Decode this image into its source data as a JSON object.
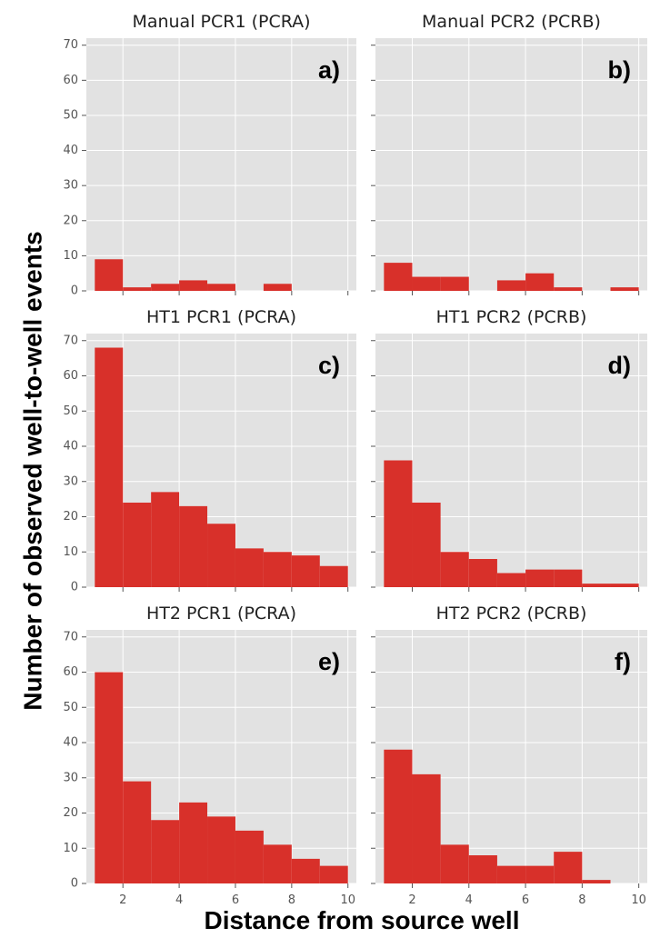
{
  "figure": {
    "ylabel": "Number of observed well-to-well events",
    "xlabel": "Distance from source well"
  },
  "style": {
    "bar_color": "#d8302a",
    "panel_bg": "#e2e2e2",
    "grid_color": "#ffffff"
  },
  "chart_data": [
    {
      "type": "bar",
      "title": "Manual PCR1 (PCRA)",
      "panel_label": "a)",
      "bin_edges": [
        1,
        2,
        3,
        4,
        5,
        6,
        7,
        8,
        9,
        10
      ],
      "values": [
        9,
        1,
        2,
        3,
        2,
        0,
        2,
        0,
        0
      ],
      "xlim": [
        0.7,
        10.3
      ],
      "ylim": [
        0,
        72
      ],
      "xticks": [
        2,
        4,
        6,
        8,
        10
      ],
      "yticks": [
        0,
        10,
        20,
        30,
        40,
        50,
        60,
        70
      ],
      "grid": true
    },
    {
      "type": "bar",
      "title": "Manual PCR2 (PCRB)",
      "panel_label": "b)",
      "bin_edges": [
        1,
        2,
        3,
        4,
        5,
        6,
        7,
        8,
        9,
        10
      ],
      "values": [
        8,
        4,
        4,
        0,
        3,
        5,
        1,
        0,
        1
      ],
      "xlim": [
        0.7,
        10.3
      ],
      "ylim": [
        0,
        72
      ],
      "xticks": [
        2,
        4,
        6,
        8,
        10
      ],
      "yticks": [
        0,
        10,
        20,
        30,
        40,
        50,
        60,
        70
      ],
      "grid": true
    },
    {
      "type": "bar",
      "title": "HT1 PCR1 (PCRA)",
      "panel_label": "c)",
      "bin_edges": [
        1,
        2,
        3,
        4,
        5,
        6,
        7,
        8,
        9,
        10
      ],
      "values": [
        68,
        24,
        27,
        23,
        18,
        11,
        10,
        9,
        6
      ],
      "xlim": [
        0.7,
        10.3
      ],
      "ylim": [
        0,
        72
      ],
      "xticks": [
        2,
        4,
        6,
        8,
        10
      ],
      "yticks": [
        0,
        10,
        20,
        30,
        40,
        50,
        60,
        70
      ],
      "grid": true
    },
    {
      "type": "bar",
      "title": "HT1 PCR2 (PCRB)",
      "panel_label": "d)",
      "bin_edges": [
        1,
        2,
        3,
        4,
        5,
        6,
        7,
        8,
        9,
        10
      ],
      "values": [
        36,
        24,
        10,
        8,
        4,
        5,
        5,
        1,
        1
      ],
      "xlim": [
        0.7,
        10.3
      ],
      "ylim": [
        0,
        72
      ],
      "xticks": [
        2,
        4,
        6,
        8,
        10
      ],
      "yticks": [
        0,
        10,
        20,
        30,
        40,
        50,
        60,
        70
      ],
      "grid": true
    },
    {
      "type": "bar",
      "title": "HT2 PCR1 (PCRA)",
      "panel_label": "e)",
      "bin_edges": [
        1,
        2,
        3,
        4,
        5,
        6,
        7,
        8,
        9,
        10
      ],
      "values": [
        60,
        29,
        18,
        23,
        19,
        15,
        11,
        7,
        5
      ],
      "xlim": [
        0.7,
        10.3
      ],
      "ylim": [
        0,
        72
      ],
      "xticks": [
        2,
        4,
        6,
        8,
        10
      ],
      "yticks": [
        0,
        10,
        20,
        30,
        40,
        50,
        60,
        70
      ],
      "grid": true
    },
    {
      "type": "bar",
      "title": "HT2 PCR2 (PCRB)",
      "panel_label": "f)",
      "bin_edges": [
        1,
        2,
        3,
        4,
        5,
        6,
        7,
        8,
        9,
        10
      ],
      "values": [
        38,
        31,
        11,
        8,
        5,
        5,
        9,
        1,
        0
      ],
      "xlim": [
        0.7,
        10.3
      ],
      "ylim": [
        0,
        72
      ],
      "xticks": [
        2,
        4,
        6,
        8,
        10
      ],
      "yticks": [
        0,
        10,
        20,
        30,
        40,
        50,
        60,
        70
      ],
      "grid": true
    }
  ]
}
